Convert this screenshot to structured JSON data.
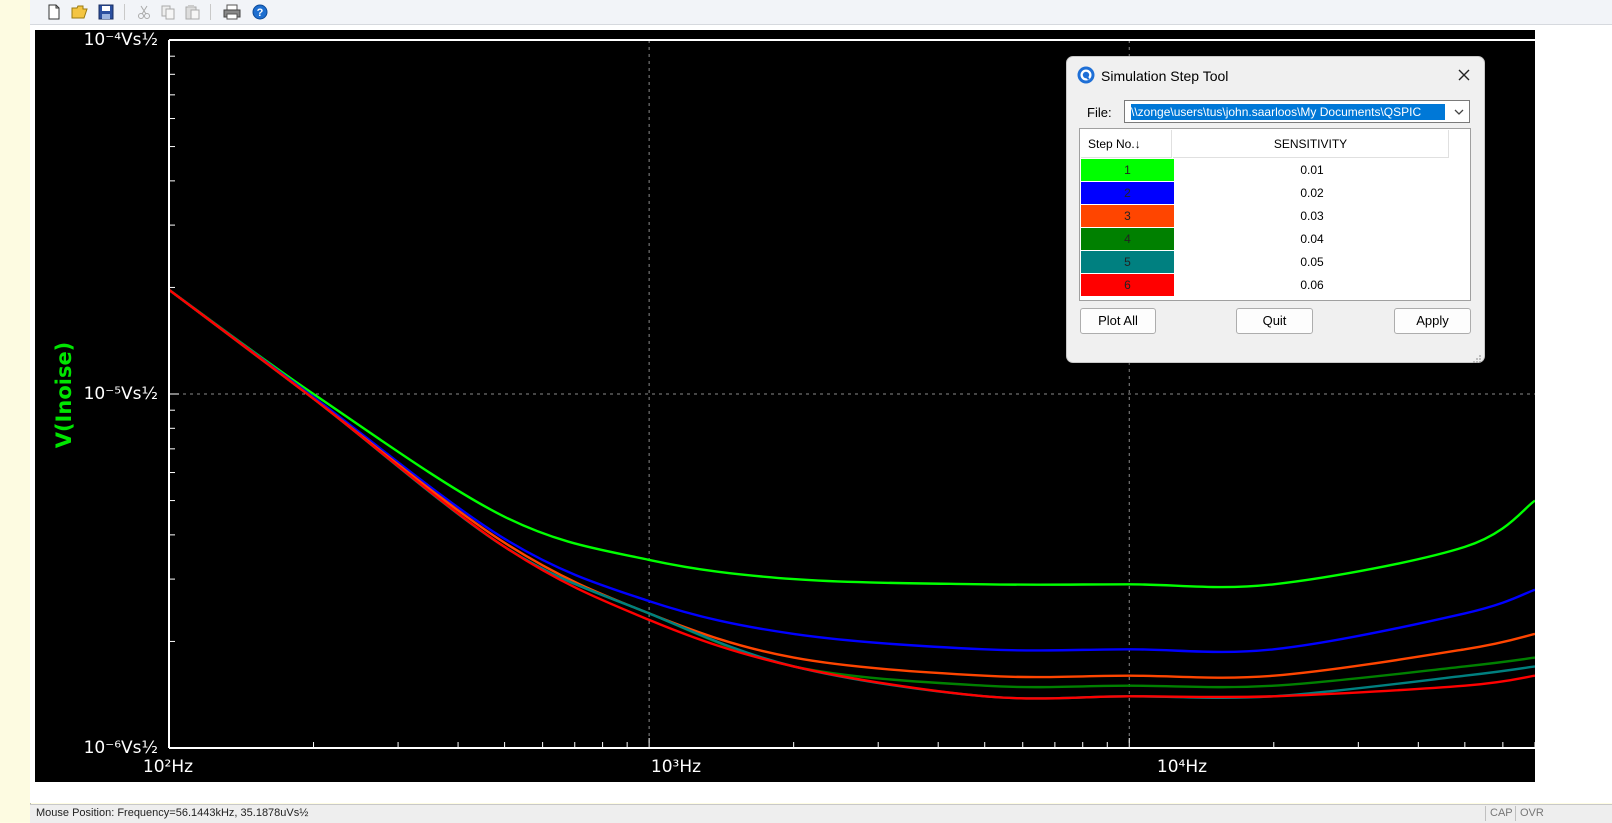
{
  "toolbar": {
    "buttons": [
      "new-file-icon",
      "open-folder-icon",
      "save-icon",
      "cut-icon",
      "copy-icon",
      "paste-icon",
      "print-icon",
      "help-icon"
    ]
  },
  "plot": {
    "y_axis_label": "V(Inoise)",
    "y_ticks": [
      "10⁻⁴Vs½",
      "10⁻⁵Vs½",
      "10⁻⁶Vs½"
    ],
    "x_ticks": [
      "10²Hz",
      "10³Hz",
      "10⁴Hz"
    ]
  },
  "chart_data": {
    "type": "line",
    "xscale": "log",
    "yscale": "log",
    "xlim": [
      100,
      70000
    ],
    "ylim": [
      1e-06,
      0.0001
    ],
    "x_ticks": [
      "10²Hz",
      "10³Hz",
      "10⁴Hz"
    ],
    "y_ticks": [
      "10⁻⁴Vs½",
      "10⁻⁵Vs½",
      "10⁻⁶Vs½"
    ],
    "ylabel": "V(Inoise)",
    "background": "#000000",
    "grid": true,
    "x": [
      100,
      200,
      500,
      1000,
      2000,
      5000,
      10000,
      20000,
      50000,
      70000
    ],
    "series": [
      {
        "color": "#00ff00",
        "values": [
          1.97e-05,
          1e-05,
          4.5e-06,
          3.4e-06,
          3e-06,
          2.9e-06,
          2.9e-06,
          2.9e-06,
          3.7e-06,
          5e-06
        ]
      },
      {
        "color": "#0000ff",
        "values": [
          1.97e-05,
          9.8e-06,
          3.9e-06,
          2.6e-06,
          2.1e-06,
          1.9e-06,
          1.9e-06,
          1.9e-06,
          2.4e-06,
          2.8e-06
        ]
      },
      {
        "color": "#ff4500",
        "values": [
          1.97e-05,
          9.7e-06,
          3.8e-06,
          2.4e-06,
          1.8e-06,
          1.6e-06,
          1.6e-06,
          1.6e-06,
          1.9e-06,
          2.1e-06
        ]
      },
      {
        "color": "#008000",
        "values": [
          1.97e-05,
          9.7e-06,
          3.7e-06,
          2.4e-06,
          1.7e-06,
          1.5e-06,
          1.5e-06,
          1.5e-06,
          1.7e-06,
          1.8e-06
        ]
      },
      {
        "color": "#008080",
        "values": [
          1.97e-05,
          9.7e-06,
          3.7e-06,
          2.4e-06,
          1.7e-06,
          1.4e-06,
          1.4e-06,
          1.4e-06,
          1.6e-06,
          1.7e-06
        ]
      },
      {
        "color": "#ff0000",
        "values": [
          1.97e-05,
          9.7e-06,
          3.7e-06,
          2.3e-06,
          1.7e-06,
          1.4e-06,
          1.4e-06,
          1.4e-06,
          1.5e-06,
          1.6e-06
        ]
      }
    ]
  },
  "dialog": {
    "title": "Simulation Step Tool",
    "file_label": "File:",
    "file_path": "\\\\zonge\\users\\tus\\john.saarloos\\My Documents\\QSPIC",
    "col_step": "Step No.↓",
    "col_param": "SENSITIVITY",
    "rows": [
      {
        "step": "1",
        "value": "0.01",
        "color": "#00ff00"
      },
      {
        "step": "2",
        "value": "0.02",
        "color": "#0000ff"
      },
      {
        "step": "3",
        "value": "0.03",
        "color": "#ff4500"
      },
      {
        "step": "4",
        "value": "0.04",
        "color": "#008000"
      },
      {
        "step": "5",
        "value": "0.05",
        "color": "#008080"
      },
      {
        "step": "6",
        "value": "0.06",
        "color": "#ff0000"
      }
    ],
    "btn_plot_all": "Plot All",
    "btn_quit": "Quit",
    "btn_apply": "Apply"
  },
  "status": {
    "mouse_position": "Mouse Position: Frequency=56.1443kHz, 35.1878uVs½",
    "cap": "CAP",
    "ovr": "OVR"
  }
}
